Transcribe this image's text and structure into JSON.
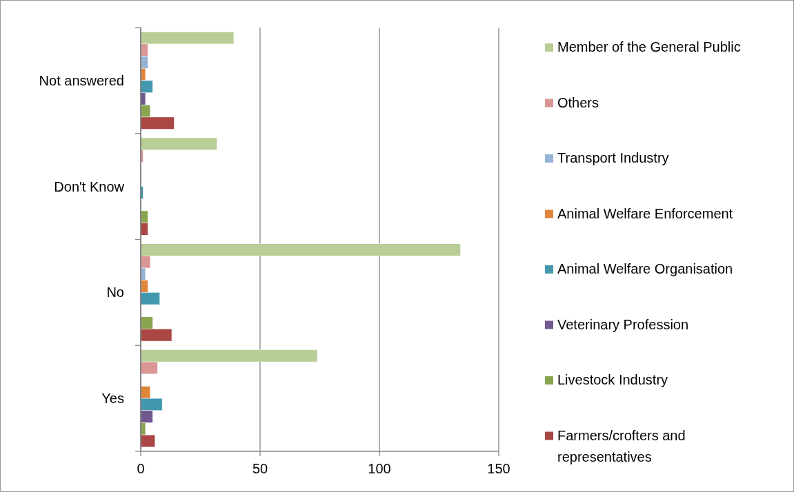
{
  "chart_data": {
    "type": "bar",
    "orientation": "horizontal",
    "categories": [
      "Not answered",
      "Don't Know",
      "No",
      "Yes"
    ],
    "series": [
      {
        "name": "Member of the General Public",
        "color": "#b9cd96",
        "values": [
          39,
          32,
          134,
          74
        ]
      },
      {
        "name": "Others",
        "color": "#d99694",
        "values": [
          3,
          1,
          4,
          7
        ]
      },
      {
        "name": "Transport Industry",
        "color": "#95b3d7",
        "values": [
          3,
          0,
          2,
          0
        ]
      },
      {
        "name": "Animal Welfare Enforcement",
        "color": "#e0863a",
        "values": [
          2,
          0,
          3,
          4
        ]
      },
      {
        "name": "Animal Welfare Organisation",
        "color": "#4198af",
        "values": [
          5,
          1,
          8,
          9
        ]
      },
      {
        "name": "Veterinary Profession",
        "color": "#71588f",
        "values": [
          2,
          0,
          0,
          5
        ]
      },
      {
        "name": "Livestock Industry",
        "color": "#89a54e",
        "values": [
          4,
          3,
          5,
          2
        ]
      },
      {
        "name": "Farmers/crofters and representatives",
        "color": "#aa4643",
        "values": [
          14,
          3,
          13,
          6
        ]
      }
    ],
    "xlim": [
      0,
      150
    ],
    "xticks": [
      0,
      50,
      100,
      150
    ],
    "grid": "x",
    "legend": "right"
  }
}
